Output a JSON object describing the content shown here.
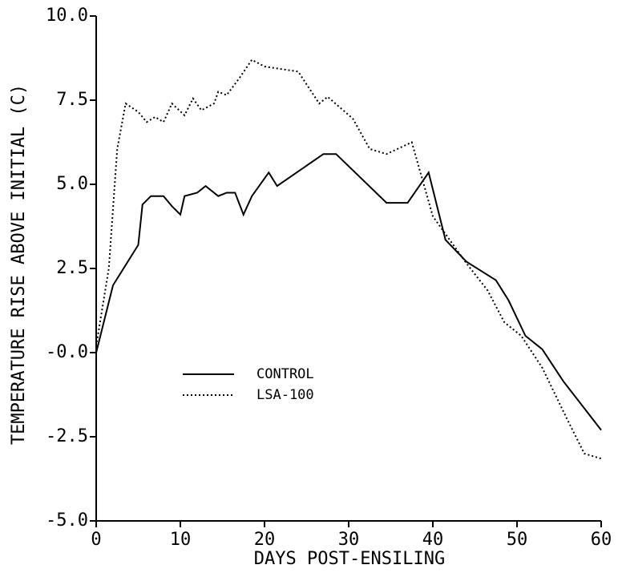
{
  "chart_data": {
    "type": "line",
    "xlabel": "DAYS POST-ENSILING",
    "ylabel": "TEMPERATURE RISE ABOVE INITIAL (C)",
    "xlim": [
      0,
      60
    ],
    "xticks": [
      0,
      10,
      20,
      30,
      40,
      50,
      60
    ],
    "ylim": [
      -5,
      10
    ],
    "yticks": [
      {
        "value": -5,
        "label": "-5.0"
      },
      {
        "value": -2.5,
        "label": "-2.5"
      },
      {
        "value": 0,
        "label": "-0.0"
      },
      {
        "value": 2.5,
        "label": "2.5"
      },
      {
        "value": 5,
        "label": "5.0"
      },
      {
        "value": 7.5,
        "label": "7.5"
      },
      {
        "value": 10,
        "label": "10.0"
      }
    ],
    "legend": "center-left",
    "series": [
      {
        "name": "CONTROL",
        "color": "#000000",
        "style": "solid",
        "x": [
          0,
          2,
          5,
          5.5,
          6.5,
          8,
          9,
          10,
          10.5,
          12,
          13,
          14.5,
          15.5,
          16.5,
          17.5,
          18.5,
          20.5,
          21.5,
          27,
          28.5,
          34.5,
          37,
          39.5,
          41.5,
          44,
          47.5,
          49,
          51,
          53,
          55.5,
          60
        ],
        "values": [
          0,
          2.0,
          3.2,
          4.4,
          4.65,
          4.65,
          4.35,
          4.1,
          4.65,
          4.75,
          4.95,
          4.65,
          4.75,
          4.75,
          4.1,
          4.65,
          5.35,
          4.95,
          5.9,
          5.9,
          4.45,
          4.45,
          5.35,
          3.35,
          2.7,
          2.15,
          1.55,
          0.5,
          0.1,
          -0.85,
          -2.3
        ]
      },
      {
        "name": "LSA-100",
        "color": "#000000",
        "style": "dotted",
        "x": [
          0,
          1.5,
          2.5,
          3.5,
          5,
          6,
          7,
          8,
          9,
          10.5,
          11.5,
          12.5,
          14,
          14.5,
          15.5,
          17,
          18.5,
          20,
          24,
          26.5,
          27.5,
          30.5,
          32.5,
          34.5,
          37.5,
          40,
          42,
          44,
          46.5,
          48.5,
          50.5,
          53,
          56,
          58,
          60
        ],
        "values": [
          0.2,
          2.5,
          6.05,
          7.4,
          7.15,
          6.85,
          7.0,
          6.85,
          7.4,
          7.05,
          7.55,
          7.2,
          7.4,
          7.75,
          7.65,
          8.15,
          8.7,
          8.5,
          8.35,
          7.4,
          7.6,
          6.95,
          6.05,
          5.9,
          6.25,
          4.05,
          3.35,
          2.65,
          1.85,
          0.9,
          0.5,
          -0.45,
          -2.0,
          -3.0,
          -3.15
        ]
      }
    ]
  }
}
